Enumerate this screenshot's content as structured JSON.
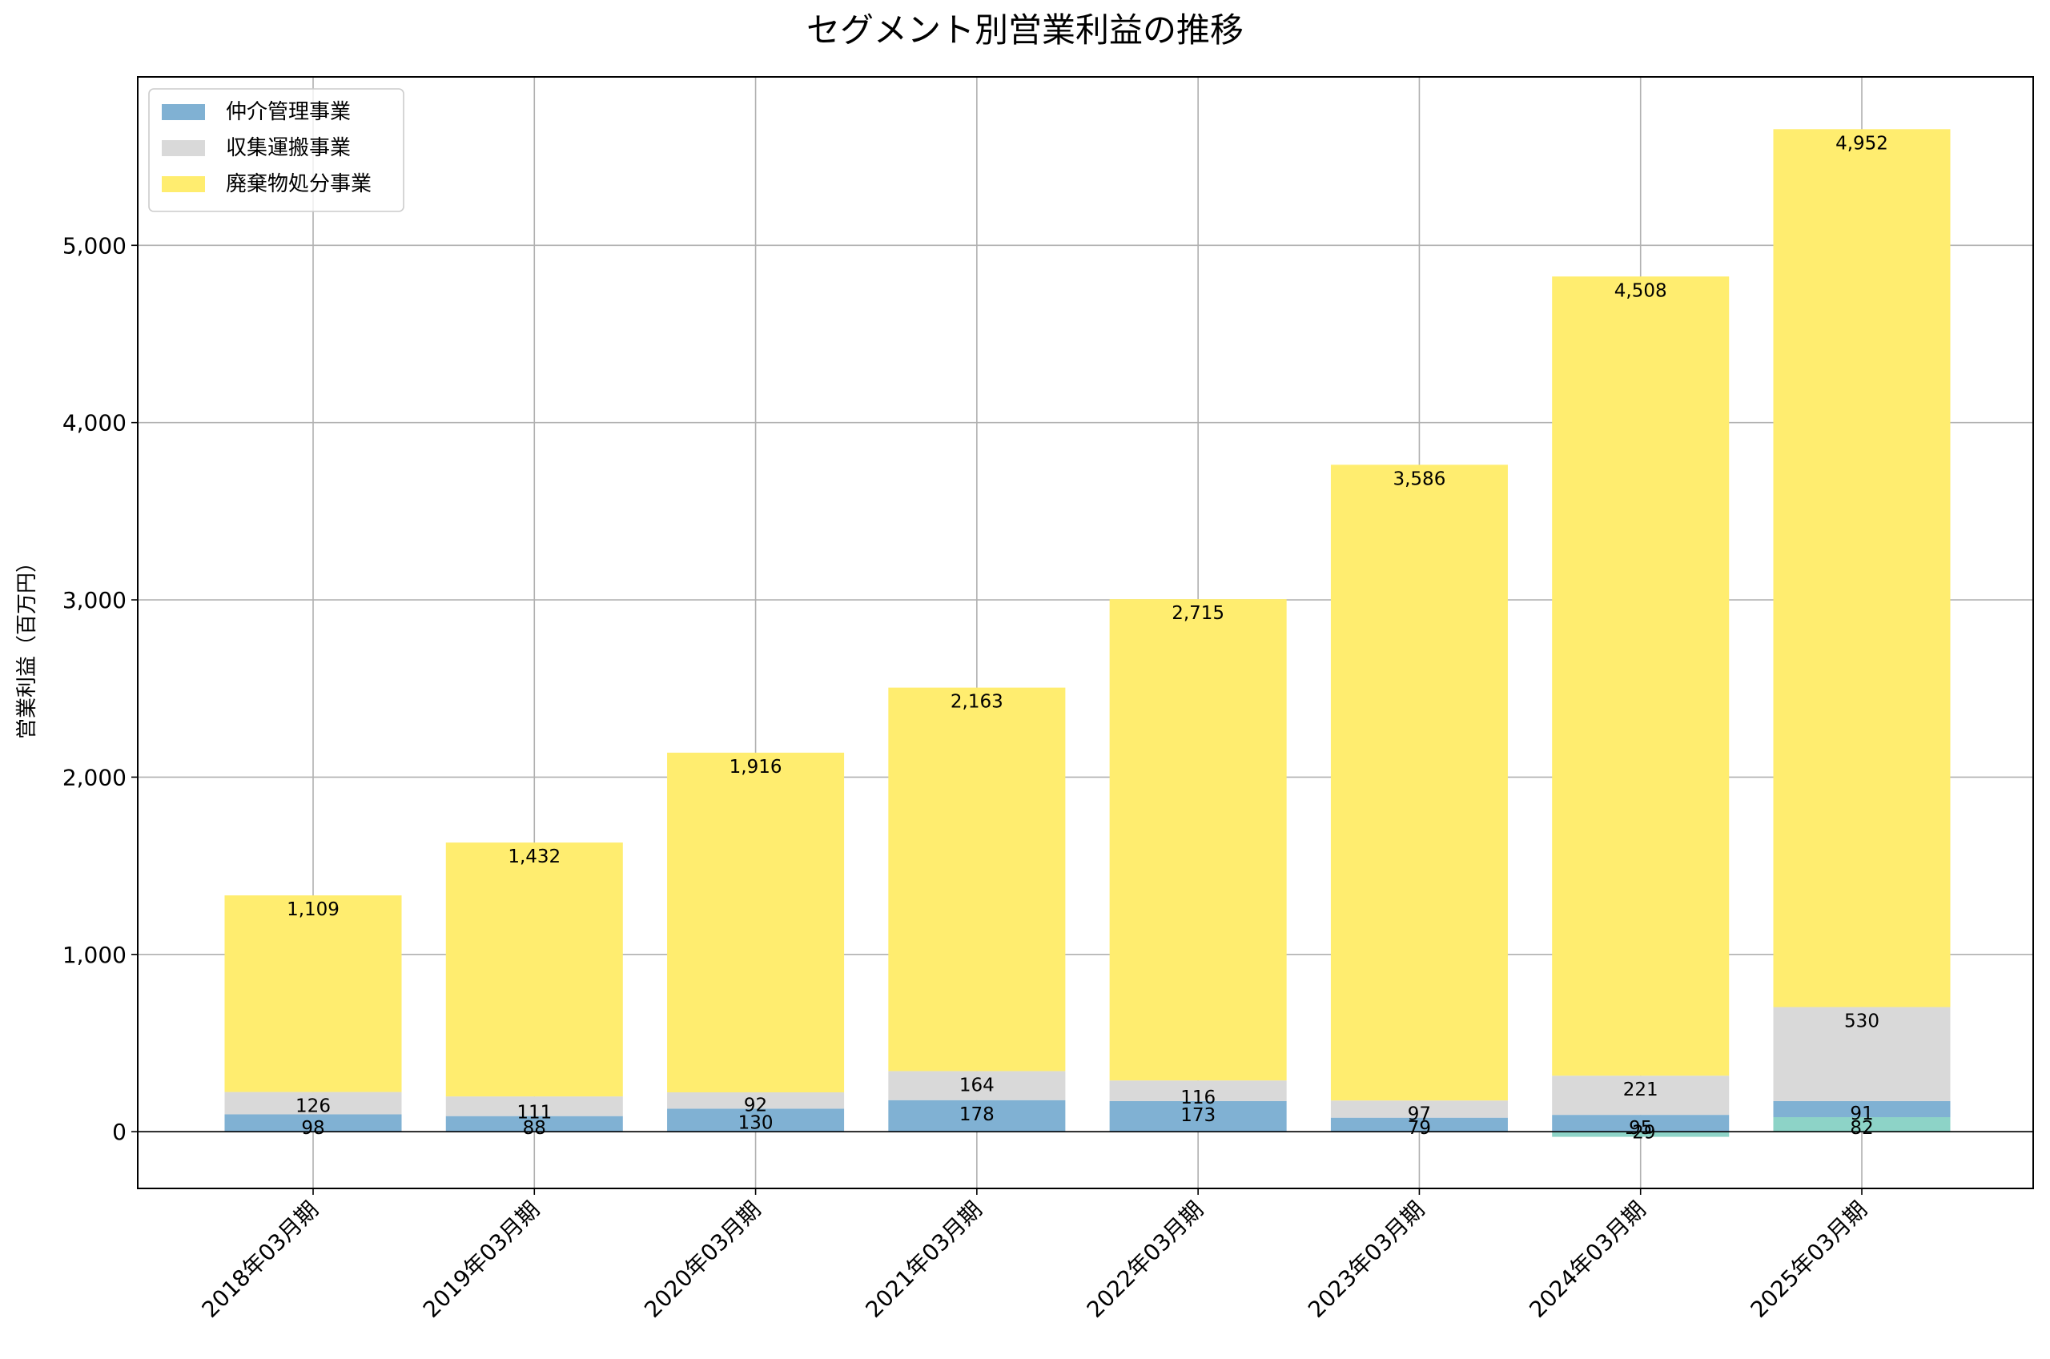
{
  "chart_data": {
    "type": "bar",
    "stacked": true,
    "title": "セグメント別営業利益の推移",
    "xlabel": "",
    "ylabel": "営業利益（百万円）",
    "ylim": [
      -320,
      5950
    ],
    "yticks": [
      0,
      1000,
      2000,
      3000,
      4000,
      5000
    ],
    "ytick_labels": [
      "0",
      "1,000",
      "2,000",
      "3,000",
      "4,000",
      "5,000"
    ],
    "grid": true,
    "legend_position": "top-left",
    "categories": [
      "2018年03月期",
      "2019年03月期",
      "2020年03月期",
      "2021年03月期",
      "2022年03月期",
      "2023年03月期",
      "2024年03月期",
      "2025年03月期"
    ],
    "series": [
      {
        "name": "",
        "color": "#8dd3c7",
        "in_legend": false,
        "values": [
          0,
          0,
          0,
          0,
          0,
          0,
          -29,
          82
        ],
        "labels": [
          "",
          "",
          "",
          "",
          "",
          "",
          "-29",
          "82"
        ]
      },
      {
        "name": "仲介管理事業",
        "color": "#80b1d3",
        "in_legend": true,
        "values": [
          98,
          88,
          130,
          178,
          173,
          79,
          95,
          91
        ],
        "labels": [
          "98",
          "88",
          "130",
          "178",
          "173",
          "79",
          "95",
          "91"
        ]
      },
      {
        "name": "収集運搬事業",
        "color": "#d9d9d9",
        "in_legend": true,
        "values": [
          126,
          111,
          92,
          164,
          116,
          97,
          221,
          530
        ],
        "labels": [
          "126",
          "111",
          "92",
          "164",
          "116",
          "97",
          "221",
          "530"
        ]
      },
      {
        "name": "廃棄物処分事業",
        "color": "#ffed6f",
        "in_legend": true,
        "values": [
          1109,
          1432,
          1916,
          2163,
          2715,
          3586,
          4508,
          4952
        ],
        "labels": [
          "1,109",
          "1,432",
          "1,916",
          "2,163",
          "2,715",
          "3,586",
          "4,508",
          "4,952"
        ]
      }
    ]
  }
}
